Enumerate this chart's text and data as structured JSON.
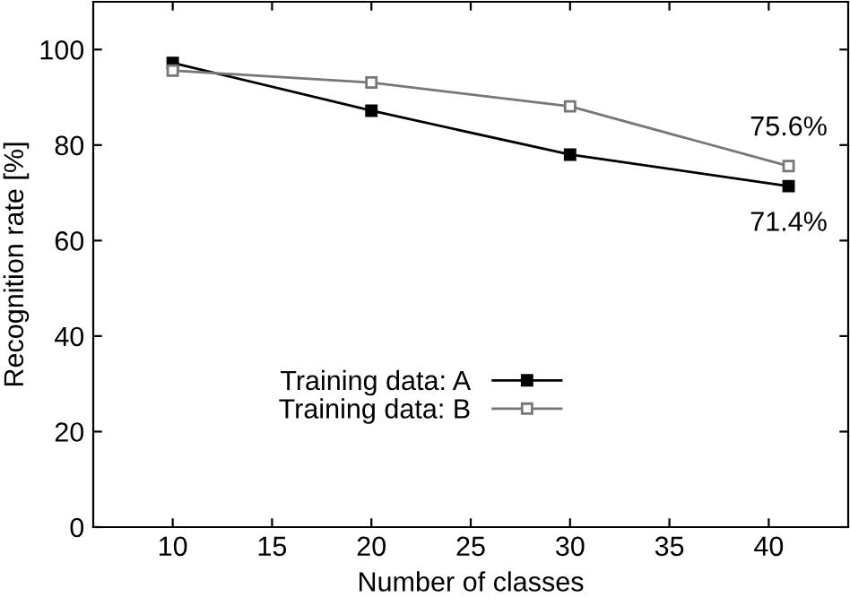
{
  "chart_data": {
    "type": "line",
    "xlabel": "Number of classes",
    "ylabel": "Recognition rate [%]",
    "x": [
      10,
      20,
      30,
      41
    ],
    "series": [
      {
        "name": "Training data: A",
        "color": "#000000",
        "values": [
          97.2,
          87.2,
          78.0,
          71.4
        ],
        "marker": "square"
      },
      {
        "name": "Training data: B",
        "color": "#777777",
        "values": [
          95.6,
          93.1,
          88.1,
          75.6
        ],
        "marker": "square"
      }
    ],
    "xlim": [
      6,
      44
    ],
    "xticks": [
      10,
      15,
      20,
      25,
      30,
      35,
      40
    ],
    "ylim": [
      0,
      110
    ],
    "yticks": [
      0,
      20,
      40,
      60,
      80,
      100
    ],
    "annotations": [
      {
        "text": "75.6%",
        "x": 41,
        "y": 75.6
      },
      {
        "text": "71.4%",
        "x": 41,
        "y": 71.4
      }
    ],
    "legend": "bottom",
    "grid": false
  }
}
